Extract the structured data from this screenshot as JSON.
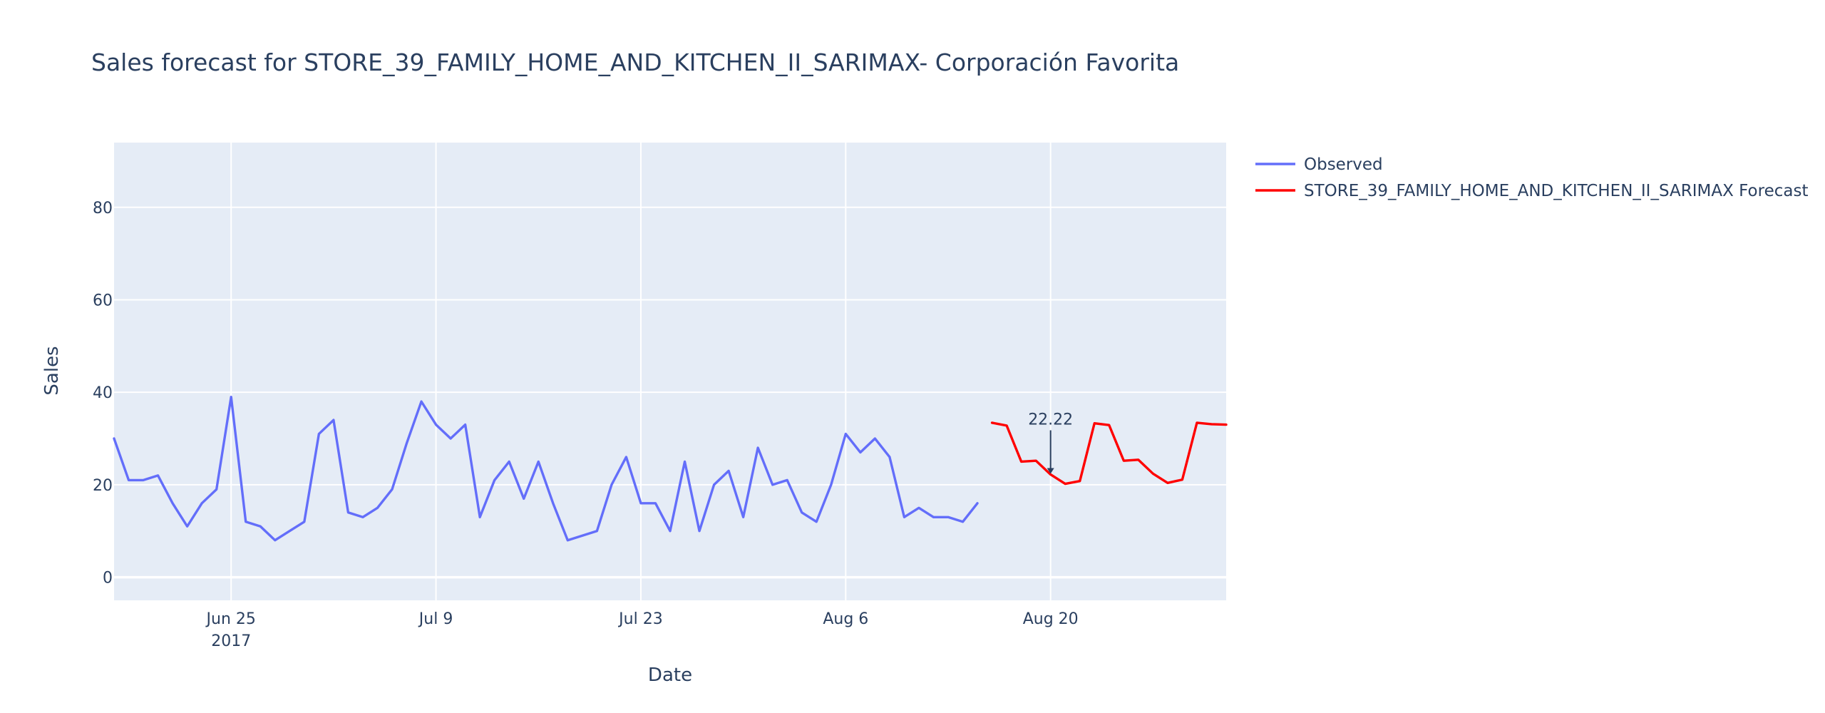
{
  "chart_data": {
    "type": "line",
    "title": "Sales forecast for STORE_39_FAMILY_HOME_AND_KITCHEN_II_SARIMAX- Corporación Favorita",
    "xlabel": "Date",
    "ylabel": "Sales",
    "xlim": [
      "2017-06-17",
      "2017-09-01"
    ],
    "ylim": [
      -5,
      94
    ],
    "grid": true,
    "legend_position": "top-right, outside plot",
    "plot_background": "#e5ecf6",
    "x_ticks": [
      {
        "date": "2017-06-25",
        "label": "Jun 25",
        "sublabel": "2017"
      },
      {
        "date": "2017-07-09",
        "label": "Jul 9",
        "sublabel": ""
      },
      {
        "date": "2017-07-23",
        "label": "Jul 23",
        "sublabel": ""
      },
      {
        "date": "2017-08-06",
        "label": "Aug 6",
        "sublabel": ""
      },
      {
        "date": "2017-08-20",
        "label": "Aug 20",
        "sublabel": ""
      }
    ],
    "y_ticks": [
      0,
      20,
      40,
      60,
      80
    ],
    "series": [
      {
        "name": "Observed",
        "color": "#636efa",
        "x": [
          "2017-06-17",
          "2017-06-18",
          "2017-06-19",
          "2017-06-20",
          "2017-06-21",
          "2017-06-22",
          "2017-06-23",
          "2017-06-24",
          "2017-06-25",
          "2017-06-26",
          "2017-06-27",
          "2017-06-28",
          "2017-06-29",
          "2017-06-30",
          "2017-07-01",
          "2017-07-02",
          "2017-07-03",
          "2017-07-04",
          "2017-07-05",
          "2017-07-06",
          "2017-07-07",
          "2017-07-08",
          "2017-07-09",
          "2017-07-10",
          "2017-07-11",
          "2017-07-12",
          "2017-07-13",
          "2017-07-14",
          "2017-07-15",
          "2017-07-16",
          "2017-07-17",
          "2017-07-18",
          "2017-07-19",
          "2017-07-20",
          "2017-07-21",
          "2017-07-22",
          "2017-07-23",
          "2017-07-24",
          "2017-07-25",
          "2017-07-26",
          "2017-07-27",
          "2017-07-28",
          "2017-07-29",
          "2017-07-30",
          "2017-07-31",
          "2017-08-01",
          "2017-08-02",
          "2017-08-03",
          "2017-08-04",
          "2017-08-05",
          "2017-08-06",
          "2017-08-07",
          "2017-08-08",
          "2017-08-09",
          "2017-08-10",
          "2017-08-11",
          "2017-08-12",
          "2017-08-13",
          "2017-08-14",
          "2017-08-15"
        ],
        "y": [
          30,
          21,
          21,
          22,
          16,
          11,
          16,
          19,
          39,
          12,
          11,
          8,
          10,
          12,
          31,
          34,
          14,
          13,
          15,
          19,
          29,
          38,
          33,
          30,
          33,
          13,
          21,
          25,
          17,
          25,
          16,
          8,
          9,
          10,
          20,
          26,
          16,
          16,
          10,
          25,
          10,
          20,
          23,
          13,
          28,
          20,
          21,
          14,
          12,
          20,
          31,
          27,
          30,
          26,
          13,
          15,
          13,
          13,
          12,
          16
        ]
      },
      {
        "name": "STORE_39_FAMILY_HOME_AND_KITCHEN_II_SARIMAX Forecast",
        "color": "#ff0000",
        "x": [
          "2017-08-16",
          "2017-08-17",
          "2017-08-18",
          "2017-08-19",
          "2017-08-20",
          "2017-08-21",
          "2017-08-22",
          "2017-08-23",
          "2017-08-24",
          "2017-08-25",
          "2017-08-26",
          "2017-08-27",
          "2017-08-28",
          "2017-08-29",
          "2017-08-30",
          "2017-08-31",
          "2017-09-01"
        ],
        "y": [
          33.4,
          32.8,
          25.0,
          25.2,
          22.22,
          20.2,
          20.8,
          33.3,
          32.9,
          25.2,
          25.4,
          22.4,
          20.4,
          21.1,
          33.4,
          33.1,
          33.0
        ]
      }
    ],
    "annotations": [
      {
        "x": "2017-08-20",
        "y": 22.22,
        "text": "22.22"
      }
    ]
  }
}
